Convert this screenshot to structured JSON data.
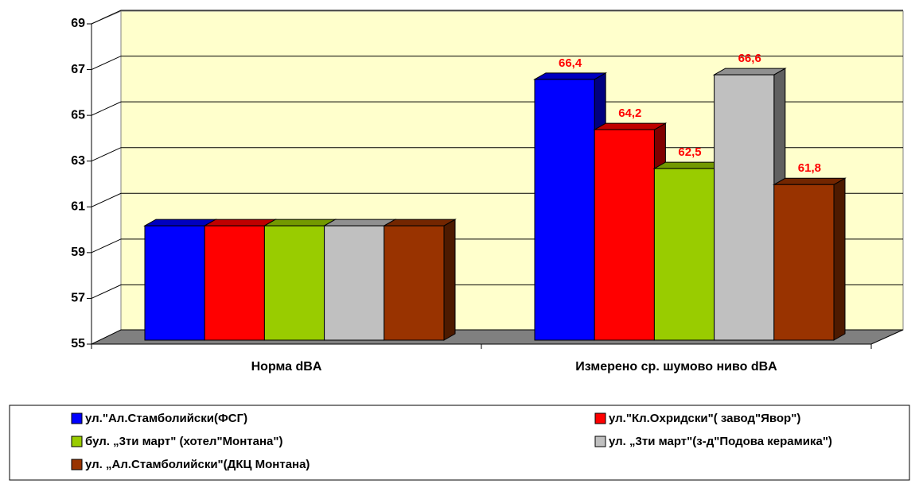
{
  "chart_data": {
    "type": "bar3d",
    "categories": [
      "Норма dBA",
      "Измерено ср. шумово ниво dBA"
    ],
    "series": [
      {
        "name": "ул.\"Ал.Стамболийски(ФСГ)",
        "color": "#0000ff",
        "values": [
          60,
          66.4
        ],
        "value_labels": [
          null,
          "66,4"
        ]
      },
      {
        "name": "ул.\"Кл.Охридски\"( завод\"Явор\")",
        "color": "#ff0000",
        "values": [
          60,
          64.2
        ],
        "value_labels": [
          null,
          "64,2"
        ]
      },
      {
        "name": " бул. „3ти март\" (хотел\"Монтана\")",
        "color": "#99cc00",
        "values": [
          60,
          62.5
        ],
        "value_labels": [
          null,
          "62,5"
        ]
      },
      {
        "name": "ул. „3ти март\"(з-д\"Подова керамика\")",
        "color": "#c0c0c0",
        "values": [
          60,
          66.6
        ],
        "value_labels": [
          null,
          "66,6"
        ]
      },
      {
        "name": "ул. „Ал.Стамболийски\"(ДКЦ Монтана)",
        "color": "#993300",
        "values": [
          60,
          61.8
        ],
        "value_labels": [
          null,
          "61,8"
        ]
      }
    ],
    "ylim": [
      55,
      69
    ],
    "yticks": [
      55,
      57,
      59,
      61,
      63,
      65,
      67,
      69
    ],
    "grid": true,
    "legend": "bottom"
  }
}
